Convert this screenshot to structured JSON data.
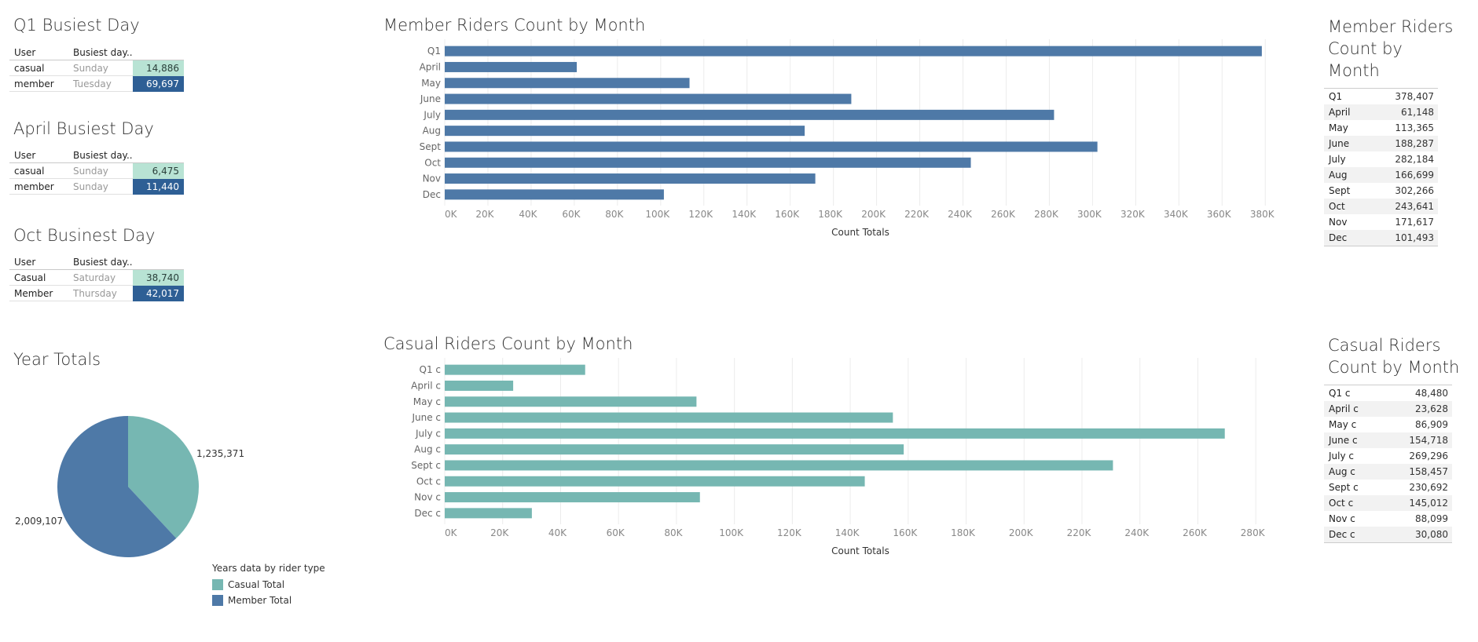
{
  "colors": {
    "member": "#4e79a7",
    "casual": "#76b7b2",
    "casual_light": "#b8e3d4",
    "member_dark": "#2e5f95"
  },
  "busiest": [
    {
      "title": "Q1 Busiest Day",
      "headers": [
        "User",
        "Busiest day.."
      ],
      "rows": [
        {
          "user": "casual",
          "day": "Sunday",
          "count": "14,886"
        },
        {
          "user": "member",
          "day": "Tuesday",
          "count": "69,697"
        }
      ]
    },
    {
      "title": "April Busiest Day",
      "headers": [
        "User",
        "Busiest day.."
      ],
      "rows": [
        {
          "user": "casual",
          "day": "Sunday",
          "count": "6,475"
        },
        {
          "user": "member",
          "day": "Sunday",
          "count": "11,440"
        }
      ]
    },
    {
      "title": "Oct Businest Day",
      "headers": [
        "User",
        "Busiest day.."
      ],
      "rows": [
        {
          "user": "Casual",
          "day": "Saturday",
          "count": "38,740"
        },
        {
          "user": "Member",
          "day": "Thursday",
          "count": "42,017"
        }
      ]
    }
  ],
  "year_totals": {
    "title": "Year Totals",
    "casual_label": "1,235,371",
    "member_label": "2,009,107"
  },
  "legend": {
    "title": "Years data by rider type",
    "items": [
      "Casual Total",
      "Member Total"
    ]
  },
  "member_table": {
    "title": "Member Riders Count by Month",
    "rows": [
      {
        "label": "Q1",
        "value": "378,407"
      },
      {
        "label": "April",
        "value": "61,148"
      },
      {
        "label": "May",
        "value": "113,365"
      },
      {
        "label": "June",
        "value": "188,287"
      },
      {
        "label": "July",
        "value": "282,184"
      },
      {
        "label": "Aug",
        "value": "166,699"
      },
      {
        "label": "Sept",
        "value": "302,266"
      },
      {
        "label": "Oct",
        "value": "243,641"
      },
      {
        "label": "Nov",
        "value": "171,617"
      },
      {
        "label": "Dec",
        "value": "101,493"
      }
    ]
  },
  "casual_table": {
    "title": "Casual Riders Count by Month",
    "rows": [
      {
        "label": "Q1 c",
        "value": "48,480"
      },
      {
        "label": "April c",
        "value": "23,628"
      },
      {
        "label": "May c",
        "value": "86,909"
      },
      {
        "label": "June c",
        "value": "154,718"
      },
      {
        "label": "July c",
        "value": "269,296"
      },
      {
        "label": "Aug c",
        "value": "158,457"
      },
      {
        "label": "Sept c",
        "value": "230,692"
      },
      {
        "label": "Oct c",
        "value": "145,012"
      },
      {
        "label": "Nov c",
        "value": "88,099"
      },
      {
        "label": "Dec c",
        "value": "30,080"
      }
    ]
  },
  "chart_data": [
    {
      "type": "bar",
      "orientation": "horizontal",
      "title": "Member Riders Count by Month",
      "xlabel": "Count Totals",
      "ylabel": "",
      "categories": [
        "Q1",
        "April",
        "May",
        "June",
        "July",
        "Aug",
        "Sept",
        "Oct",
        "Nov",
        "Dec"
      ],
      "values": [
        378407,
        61148,
        113365,
        188287,
        282184,
        166699,
        302266,
        243641,
        171617,
        101493
      ],
      "xlim": [
        0,
        385000
      ],
      "ticks": [
        "0K",
        "20K",
        "40K",
        "60K",
        "80K",
        "100K",
        "120K",
        "140K",
        "160K",
        "180K",
        "200K",
        "220K",
        "240K",
        "260K",
        "280K",
        "300K",
        "320K",
        "340K",
        "360K",
        "380K"
      ],
      "color": "#4e79a7",
      "grid": true
    },
    {
      "type": "bar",
      "orientation": "horizontal",
      "title": "Casual Riders Count by Month",
      "xlabel": "Count Totals",
      "ylabel": "",
      "categories": [
        "Q1 c",
        "April c",
        "May c",
        "June c",
        "July c",
        "Aug c",
        "Sept c",
        "Oct c",
        "Nov c",
        "Dec c"
      ],
      "values": [
        48480,
        23628,
        86909,
        154718,
        269296,
        158457,
        230692,
        145012,
        88099,
        30080
      ],
      "xlim": [
        0,
        287000
      ],
      "ticks": [
        "0K",
        "20K",
        "40K",
        "60K",
        "80K",
        "100K",
        "120K",
        "140K",
        "160K",
        "180K",
        "200K",
        "220K",
        "240K",
        "260K",
        "280K"
      ],
      "color": "#76b7b2",
      "grid": true
    },
    {
      "type": "pie",
      "title": "Year Totals",
      "categories": [
        "Casual Total",
        "Member Total"
      ],
      "values": [
        1235371,
        2009107
      ],
      "colors": [
        "#76b7b2",
        "#4e79a7"
      ]
    }
  ]
}
